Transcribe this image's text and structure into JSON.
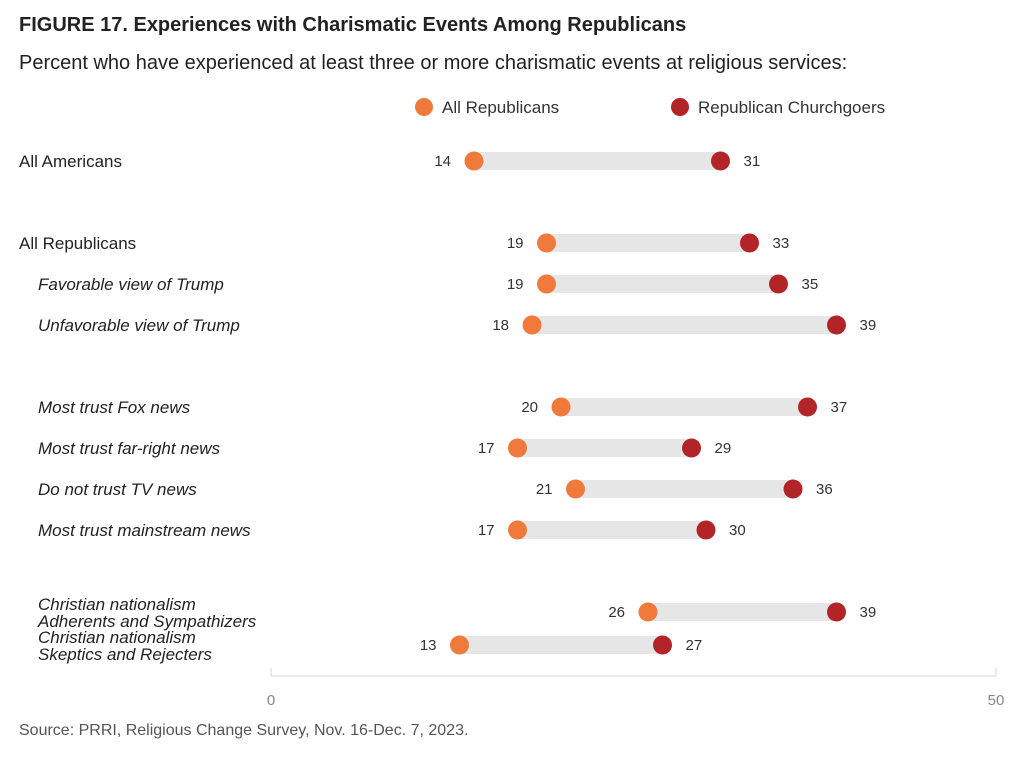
{
  "figure": {
    "title": "FIGURE 17. Experiences with Charismatic Events Among Republicans",
    "subtitle": "Percent who have experienced at least three or more charismatic events at religious services:",
    "source": "Source: PRRI, Religious Change Survey, Nov. 16-Dec. 7, 2023."
  },
  "chart_data": {
    "type": "dumbbell",
    "xlim": [
      0,
      50
    ],
    "x_ticks": [
      "0",
      "50"
    ],
    "legend_position": "top",
    "series": [
      {
        "name": "All Republicans",
        "color": "#f07a3c"
      },
      {
        "name": "Republican Churchgoers",
        "color": "#b32428"
      }
    ],
    "rows": [
      {
        "label": [
          "All Americans"
        ],
        "italic": false,
        "a": 14,
        "b": 31
      },
      {
        "label": [
          "All Republicans"
        ],
        "italic": false,
        "a": 19,
        "b": 33
      },
      {
        "label": [
          "Favorable view of Trump"
        ],
        "italic": true,
        "a": 19,
        "b": 35
      },
      {
        "label": [
          "Unfavorable view of Trump"
        ],
        "italic": true,
        "a": 18,
        "b": 39
      },
      {
        "label": [
          "Most trust Fox news"
        ],
        "italic": true,
        "a": 20,
        "b": 37
      },
      {
        "label": [
          "Most trust far-right news"
        ],
        "italic": true,
        "a": 17,
        "b": 29
      },
      {
        "label": [
          "Do not trust TV news"
        ],
        "italic": true,
        "a": 21,
        "b": 36
      },
      {
        "label": [
          "Most trust mainstream news"
        ],
        "italic": true,
        "a": 17,
        "b": 30
      },
      {
        "label": [
          "Christian nationalism",
          "Adherents and Sympathizers"
        ],
        "italic": true,
        "a": 26,
        "b": 39
      },
      {
        "label": [
          "Christian nationalism",
          "Skeptics and Rejecters"
        ],
        "italic": true,
        "a": 13,
        "b": 27
      }
    ]
  }
}
